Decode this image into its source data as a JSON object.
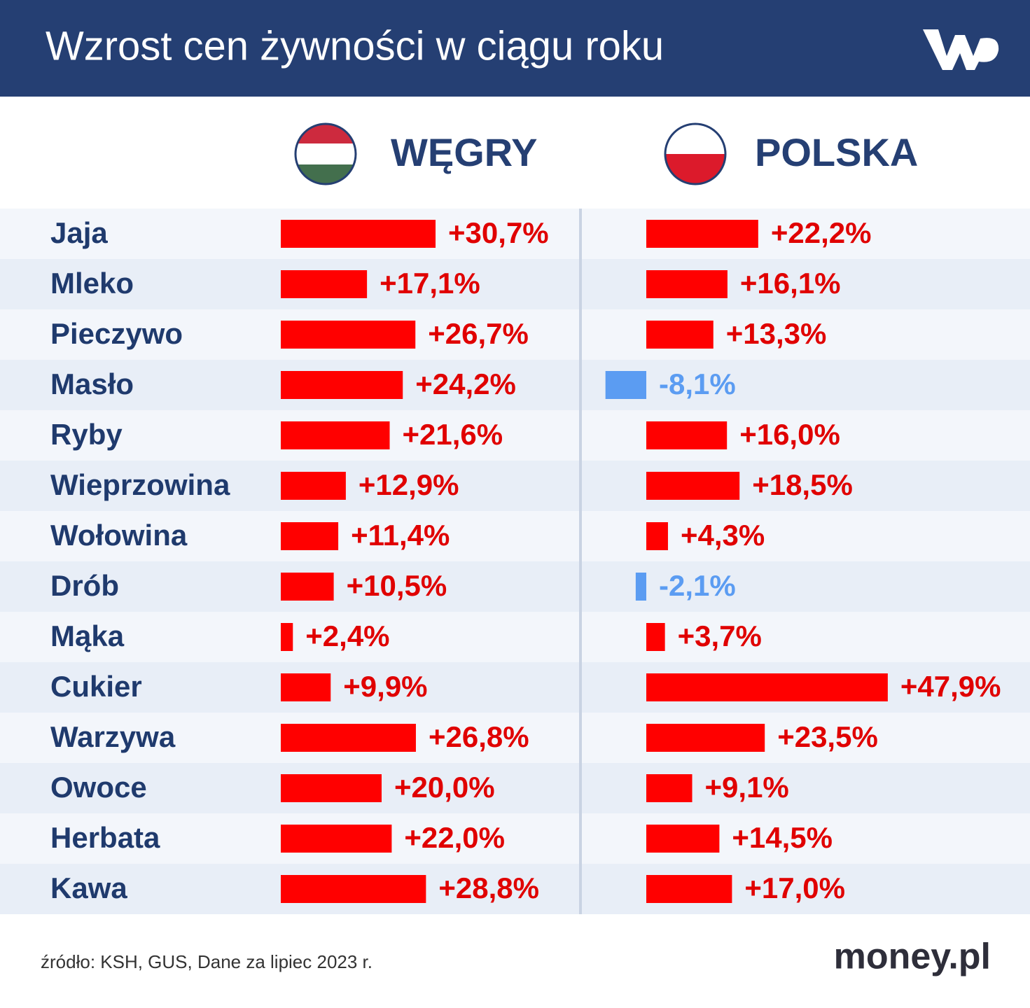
{
  "title": "Wzrost cen żywności w ciągu roku",
  "source": "źródło: KSH, GUS, Dane za lipiec 2023 r.",
  "brand": "money.pl",
  "chart_data": {
    "type": "bar",
    "orientation": "horizontal",
    "categories": [
      "Jaja",
      "Mleko",
      "Pieczywo",
      "Masło",
      "Ryby",
      "Wieprzowina",
      "Wołowina",
      "Drób",
      "Mąka",
      "Cukier",
      "Warzywa",
      "Owoce",
      "Herbata",
      "Kawa"
    ],
    "negative_color": "#5b9cf2",
    "series": [
      {
        "name": "WĘGRY",
        "color": "#ff0000",
        "values": [
          30.7,
          17.1,
          26.7,
          24.2,
          21.6,
          12.9,
          11.4,
          10.5,
          2.4,
          9.9,
          26.8,
          20.0,
          22.0,
          28.8
        ],
        "value_labels": [
          "+30,7%",
          "+17,1%",
          "+26,7%",
          "+24,2%",
          "+21,6%",
          "+12,9%",
          "+11,4%",
          "+10,5%",
          "+2,4%",
          "+9,9%",
          "+26,8%",
          "+20,0%",
          "+22,0%",
          "+28,8%"
        ]
      },
      {
        "name": "POLSKA",
        "color": "#ff0000",
        "values": [
          22.2,
          16.1,
          13.3,
          -8.1,
          16.0,
          18.5,
          4.3,
          -2.1,
          3.7,
          47.9,
          23.5,
          9.1,
          14.5,
          17.0
        ],
        "value_labels": [
          "+22,2%",
          "+16,1%",
          "+13,3%",
          "-8,1%",
          "+16,0%",
          "+18,5%",
          "+4,3%",
          "-2,1%",
          "+3,7%",
          "+47,9%",
          "+23,5%",
          "+9,1%",
          "+14,5%",
          "+17,0%"
        ]
      }
    ]
  }
}
